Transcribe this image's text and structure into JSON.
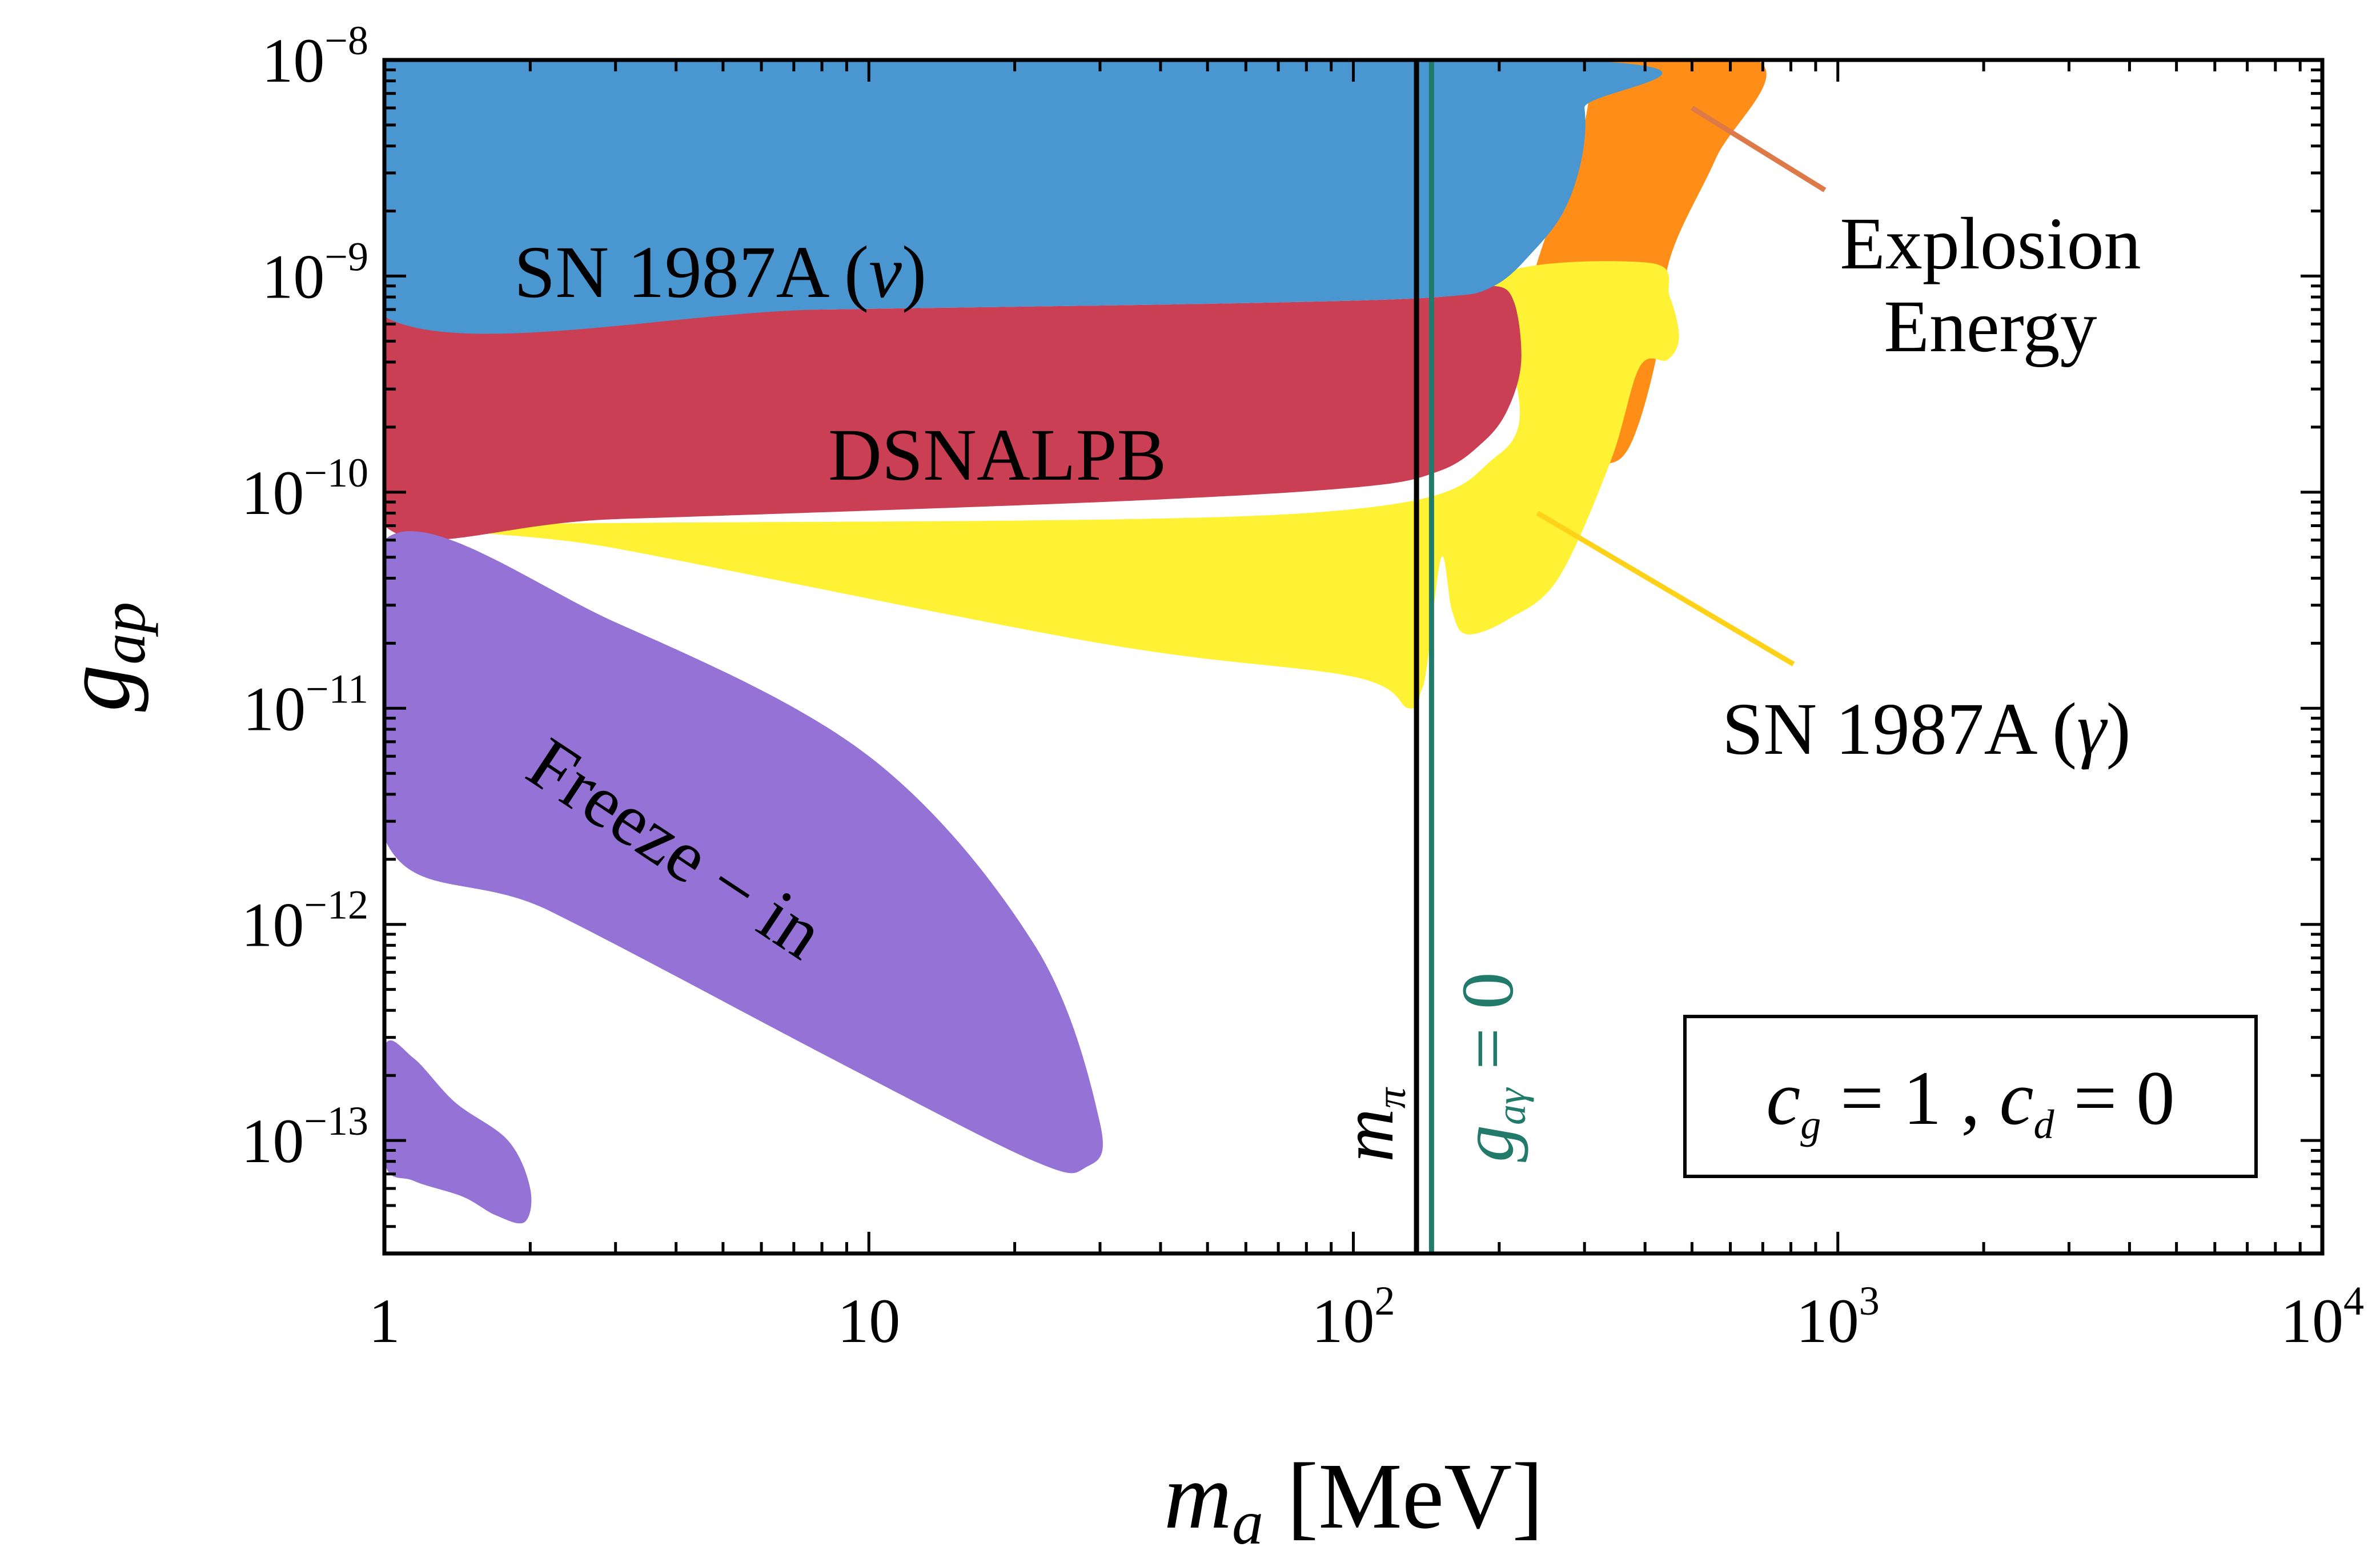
{
  "chart_data": {
    "type": "area",
    "title": "",
    "xscale": "log",
    "yscale": "log",
    "xlim": [
      1,
      10000
    ],
    "ylim": [
      3e-14,
      1e-08
    ],
    "x_ticks": [
      {
        "value": 1,
        "base": "1",
        "exp": ""
      },
      {
        "value": 10,
        "base": "10",
        "exp": ""
      },
      {
        "value": 100,
        "base": "10",
        "exp": "2"
      },
      {
        "value": 1000,
        "base": "10",
        "exp": "3"
      },
      {
        "value": 10000,
        "base": "10",
        "exp": "4"
      }
    ],
    "y_ticks": [
      {
        "value": 1e-08,
        "base": "10",
        "exp": "−8"
      },
      {
        "value": 1e-09,
        "base": "10",
        "exp": "−9"
      },
      {
        "value": 1e-10,
        "base": "10",
        "exp": "−10"
      },
      {
        "value": 1e-11,
        "base": "10",
        "exp": "−11"
      },
      {
        "value": 1e-12,
        "base": "10",
        "exp": "−12"
      },
      {
        "value": 1e-13,
        "base": "10",
        "exp": "−13"
      }
    ],
    "xlabel": {
      "symbol": "m",
      "sub": "a",
      "unit": "[MeV]"
    },
    "ylabel": {
      "symbol": "g",
      "sub": "ap"
    },
    "regions": [
      {
        "name": "Explosion Energy",
        "color": "#ff8e18",
        "label_lines": [
          "Explosion",
          "Energy"
        ],
        "boundary": [
          [
            220,
            1e-08
          ],
          [
            680,
            1e-08
          ],
          [
            560,
            3.5e-09
          ],
          [
            450,
            1.2e-09
          ],
          [
            420,
            4e-10
          ],
          [
            370,
            1.6e-10
          ],
          [
            320,
            1.35e-10
          ],
          [
            260,
            1.5e-10
          ],
          [
            222,
            2.2e-10
          ],
          [
            230,
            8e-10
          ],
          [
            270,
            2.5e-09
          ],
          [
            300,
            5e-09
          ],
          [
            300,
            1e-08
          ]
        ]
      },
      {
        "name": "SN 1987A (γ)",
        "color": "#fff133",
        "label": "SN 1987A (",
        "label_symbol": "γ",
        "label_close": ")",
        "boundary": [
          [
            200,
            1e-09
          ],
          [
            410,
            1.15e-09
          ],
          [
            450,
            8e-10
          ],
          [
            470,
            5.2e-10
          ],
          [
            445,
            4.1e-10
          ],
          [
            390,
            3.8e-10
          ],
          [
            340,
            1.4e-10
          ],
          [
            265,
            4e-11
          ],
          [
            210,
            2.6e-11
          ],
          [
            172,
            2.2e-11
          ],
          [
            160,
            2.8e-11
          ],
          [
            152,
            5e-11
          ],
          [
            142,
            1.6e-11
          ],
          [
            138,
            1.2e-11
          ],
          [
            130,
            1e-11
          ],
          [
            100,
            1.4e-11
          ],
          [
            30,
            2e-11
          ],
          [
            3,
            5.5e-11
          ],
          [
            1.5,
            7e-11
          ],
          [
            80,
            8e-11
          ],
          [
            200,
            1.5e-10
          ],
          [
            215,
            4e-10
          ]
        ]
      },
      {
        "name": "DSNALPB",
        "color": "#ca3f53",
        "label": "DSNALPB",
        "boundary": [
          [
            1,
            6.5e-10
          ],
          [
            8,
            7e-10
          ],
          [
            60,
            7.5e-10
          ],
          [
            150,
            8e-10
          ],
          [
            195,
            9e-10
          ],
          [
            215,
            7.5e-10
          ],
          [
            222,
            4e-10
          ],
          [
            208,
            2.4e-10
          ],
          [
            185,
            1.7e-10
          ],
          [
            150,
            1.25e-10
          ],
          [
            100,
            1.05e-10
          ],
          [
            30,
            9e-11
          ],
          [
            3,
            7.5e-11
          ],
          [
            1,
            7e-11
          ]
        ]
      },
      {
        "name": "SN 1987A (ν)",
        "color": "#4a96d1",
        "label": "SN 1987A (",
        "label_symbol": "ν",
        "label_close": ")",
        "boundary": [
          [
            1,
            1e-08
          ],
          [
            280,
            1e-08
          ],
          [
            300,
            6e-09
          ],
          [
            296,
            3.5e-09
          ],
          [
            272,
            2e-09
          ],
          [
            235,
            1.3e-09
          ],
          [
            195,
            9e-10
          ],
          [
            150,
            8e-10
          ],
          [
            60,
            7.5e-10
          ],
          [
            8,
            7e-10
          ],
          [
            1,
            6.5e-10
          ]
        ]
      },
      {
        "name": "Freeze − in",
        "color": "#9573d6",
        "label": "Freeze − in",
        "boundary": [
          [
            1,
            6e-11
          ],
          [
            3,
            2.5e-11
          ],
          [
            10,
            6e-12
          ],
          [
            22,
            8e-13
          ],
          [
            30,
            1.2e-13
          ],
          [
            28,
            7.5e-14
          ],
          [
            22,
            8e-14
          ],
          [
            9,
            2.2e-13
          ],
          [
            2.2,
            1.15e-12
          ],
          [
            1,
            2.5e-12
          ]
        ]
      },
      {
        "name": "Freeze − in (low mass)",
        "color": "#9573d6",
        "boundary": [
          [
            1,
            2.7e-13
          ],
          [
            1.15,
            2.4e-13
          ],
          [
            1.4,
            1.5e-13
          ],
          [
            1.8,
            1e-13
          ],
          [
            2,
            6e-14
          ],
          [
            1.95,
            4.2e-14
          ],
          [
            1.7,
            4.5e-14
          ],
          [
            1.45,
            5.5e-14
          ],
          [
            1.15,
            6.5e-14
          ],
          [
            1,
            8e-14
          ]
        ]
      }
    ],
    "vertical_lines": [
      {
        "name": "m_pi",
        "x": 135,
        "color": "#000000",
        "label_main": "m",
        "label_sub": "π"
      },
      {
        "name": "g_agamma_zero",
        "x": 145,
        "color": "#227a6a",
        "label_main": "g",
        "label_sub": "aγ",
        "label_tail": " = 0"
      }
    ],
    "pointer_lines": [
      {
        "name": "explosion-energy-pointer",
        "color": "#dd7a48",
        "from": [
          500,
          6e-09
        ],
        "to": [
          940,
          2.5e-09
        ]
      },
      {
        "name": "sn-gamma-pointer",
        "color": "#ffd21a",
        "from": [
          240,
          8e-11
        ],
        "to": [
          810,
          1.6e-11
        ]
      }
    ],
    "legend_box": {
      "c1": "c",
      "c1_sub": "g",
      "eq1": " = 1 , ",
      "c2": "c",
      "c2_sub": "d",
      "eq2": " = 0",
      "position": "bottom-right"
    },
    "grid": false
  }
}
